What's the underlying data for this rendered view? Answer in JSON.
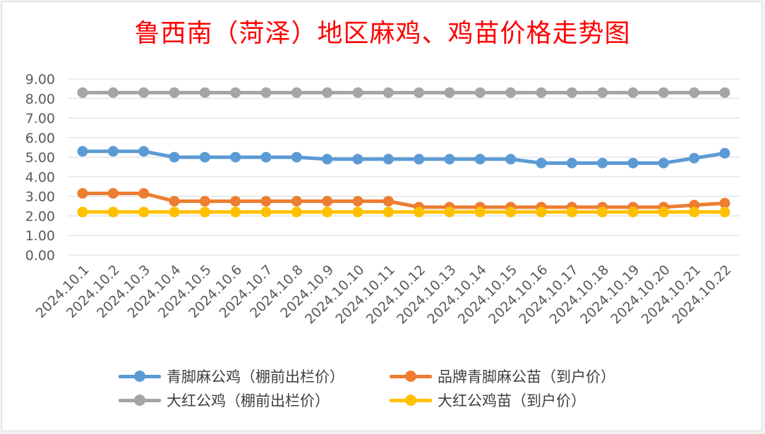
{
  "chart_data": {
    "type": "line",
    "title": "鲁西南（菏泽）地区麻鸡、鸡苗价格走势图",
    "categories": [
      "2024.10.1",
      "2024.10.2",
      "2024.10.3",
      "2024.10.4",
      "2024.10.5",
      "2024.10.6",
      "2024.10.7",
      "2024.10.8",
      "2024.10.9",
      "2024.10.10",
      "2024.10.11",
      "2024.10.12",
      "2024.10.13",
      "2024.10.14",
      "2024.10.15",
      "2024.10.16",
      "2024.10.17",
      "2024.10.18",
      "2024.10.19",
      "2024.10.20",
      "2024.10.21",
      "2024.10.22"
    ],
    "ylim": [
      0,
      9
    ],
    "yticks": [
      "0.00",
      "1.00",
      "2.00",
      "3.00",
      "4.00",
      "5.00",
      "6.00",
      "7.00",
      "8.00",
      "9.00"
    ],
    "grid": true,
    "legend_position": "bottom",
    "series": [
      {
        "name": "青脚麻公鸡（棚前出栏价）",
        "color": "#5b9bd5",
        "values": [
          5.3,
          5.3,
          5.3,
          5.0,
          5.0,
          5.0,
          5.0,
          5.0,
          4.9,
          4.9,
          4.9,
          4.9,
          4.9,
          4.9,
          4.9,
          4.7,
          4.7,
          4.7,
          4.7,
          4.7,
          4.95,
          5.2
        ]
      },
      {
        "name": "品牌青脚麻公苗（到户价）",
        "color": "#ed7d31",
        "values": [
          3.15,
          3.15,
          3.15,
          2.75,
          2.75,
          2.75,
          2.75,
          2.75,
          2.75,
          2.75,
          2.75,
          2.45,
          2.45,
          2.45,
          2.45,
          2.45,
          2.45,
          2.45,
          2.45,
          2.45,
          2.55,
          2.65
        ]
      },
      {
        "name": "大红公鸡（棚前出栏价）",
        "color": "#a5a5a5",
        "values": [
          8.3,
          8.3,
          8.3,
          8.3,
          8.3,
          8.3,
          8.3,
          8.3,
          8.3,
          8.3,
          8.3,
          8.3,
          8.3,
          8.3,
          8.3,
          8.3,
          8.3,
          8.3,
          8.3,
          8.3,
          8.3,
          8.3
        ]
      },
      {
        "name": "大红公鸡苗（到户价）",
        "color": "#ffc000",
        "values": [
          2.2,
          2.2,
          2.2,
          2.2,
          2.2,
          2.2,
          2.2,
          2.2,
          2.2,
          2.2,
          2.2,
          2.2,
          2.2,
          2.2,
          2.2,
          2.2,
          2.2,
          2.2,
          2.2,
          2.2,
          2.2,
          2.2
        ]
      }
    ]
  }
}
